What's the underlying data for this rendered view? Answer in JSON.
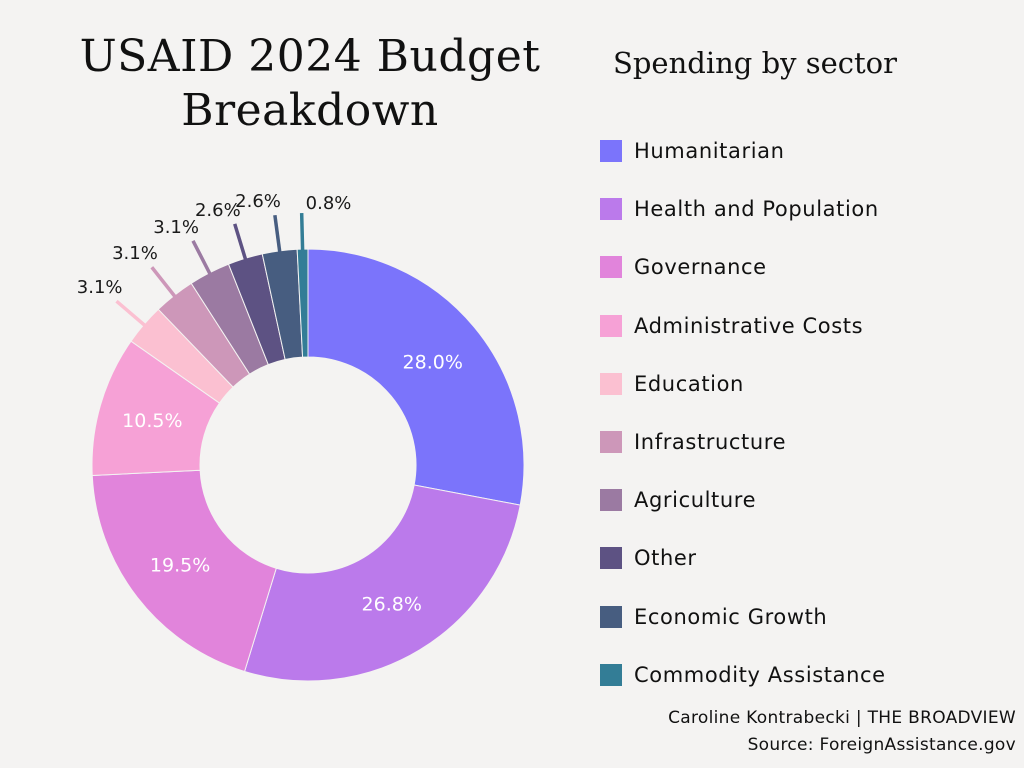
{
  "title_line1": "USAID 2024 Budget",
  "title_line2": "Breakdown",
  "legend_title": "Spending by sector",
  "credit": "Caroline Kontrabecki | THE BROADVIEW",
  "source": "Source: ForeignAssistance.gov",
  "chart_data": {
    "type": "pie",
    "style": "donut",
    "title": "USAID 2024 Budget Breakdown",
    "subtitle": "Spending by sector",
    "legend_position": "right",
    "unit": "%",
    "slices": [
      {
        "label": "Humanitarian",
        "value": 28.0,
        "value_label": "28.0%",
        "color": "#7b74fb"
      },
      {
        "label": "Health and Population",
        "value": 26.8,
        "value_label": "26.8%",
        "color": "#bb7aeb"
      },
      {
        "label": "Governance",
        "value": 19.5,
        "value_label": "19.5%",
        "color": "#e184db"
      },
      {
        "label": "Administrative Costs",
        "value": 10.5,
        "value_label": "10.5%",
        "color": "#f6a1d6"
      },
      {
        "label": "Education",
        "value": 3.1,
        "value_label": "3.1%",
        "color": "#fbc0d1"
      },
      {
        "label": "Infrastructure",
        "value": 3.1,
        "value_label": "3.1%",
        "color": "#cd97b9"
      },
      {
        "label": "Agriculture",
        "value": 3.1,
        "value_label": "3.1%",
        "color": "#9b7aa2"
      },
      {
        "label": "Other",
        "value": 2.6,
        "value_label": "2.6%",
        "color": "#5d5283"
      },
      {
        "label": "Economic Growth",
        "value": 2.6,
        "value_label": "2.6%",
        "color": "#475d80"
      },
      {
        "label": "Commodity Assistance",
        "value": 0.8,
        "value_label": "0.8%",
        "color": "#337d96"
      }
    ]
  }
}
